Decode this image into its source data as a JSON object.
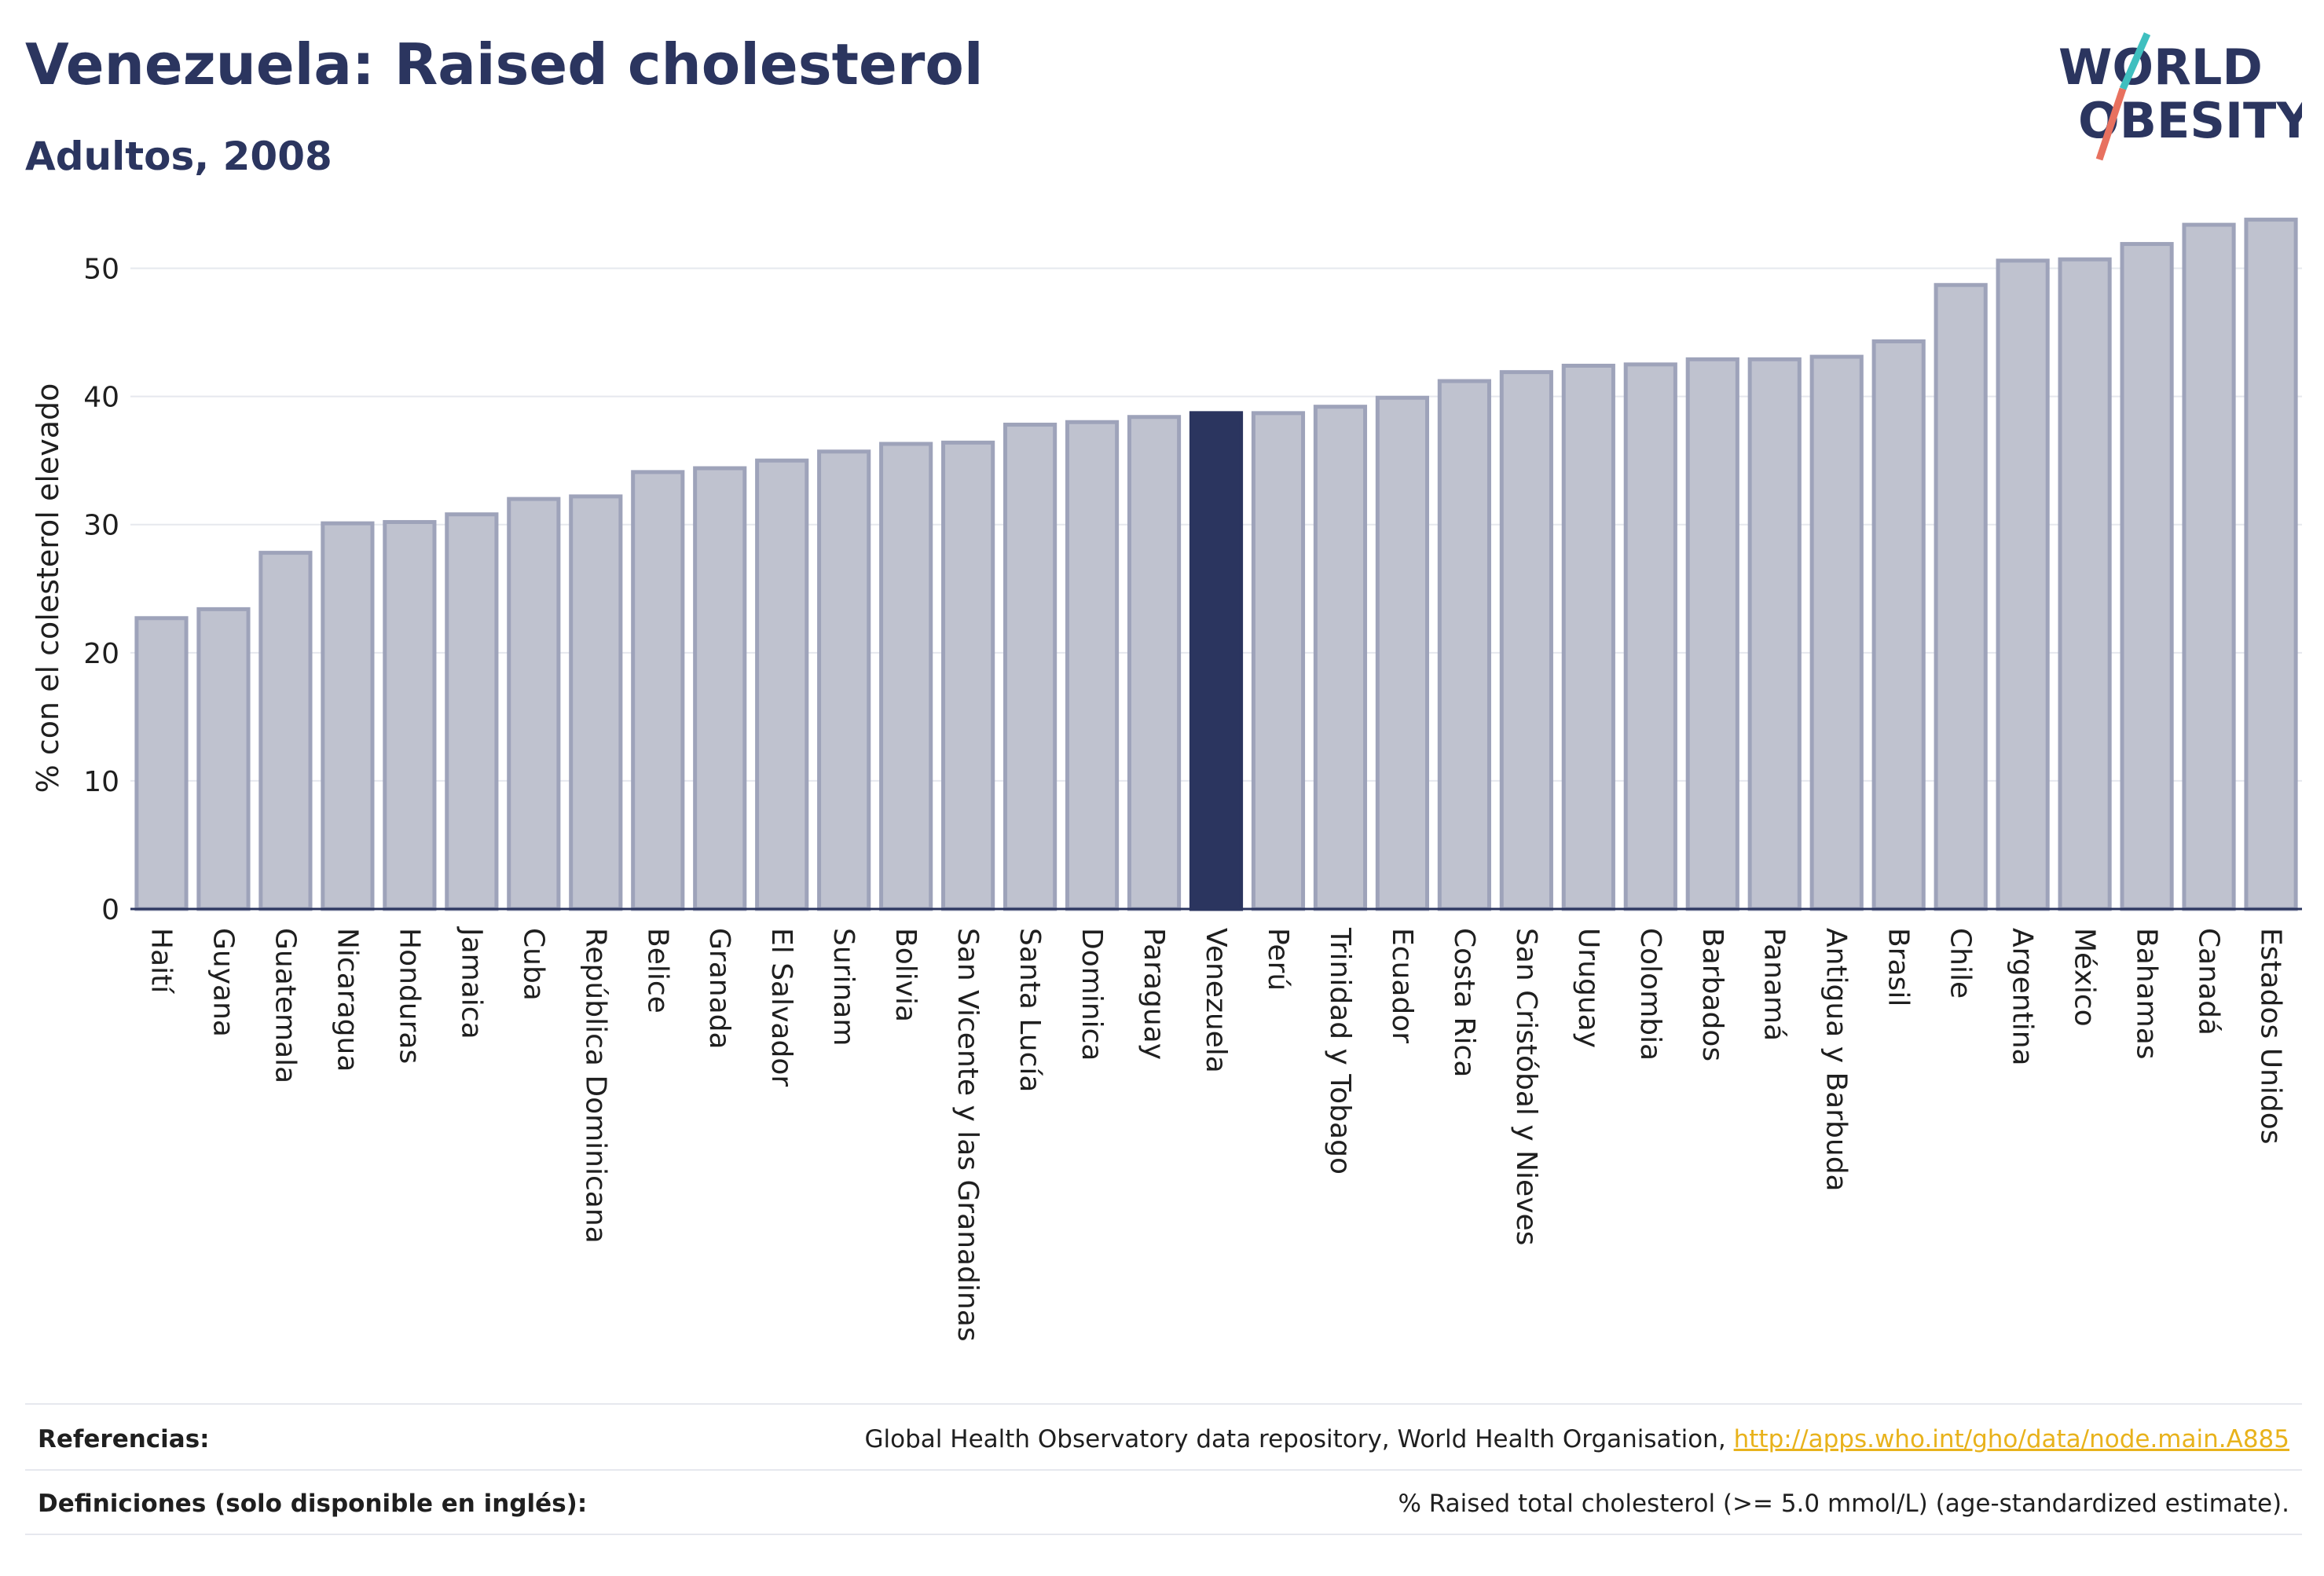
{
  "header": {
    "title": "Venezuela: Raised cholesterol",
    "subtitle": "Adultos, 2008"
  },
  "logo": {
    "line1": "WORLD",
    "line2": "OBESITY",
    "slash_colors": [
      "#3fbfbf",
      "#e8715f"
    ]
  },
  "colors": {
    "bar_fill": "#bfc2cf",
    "bar_stroke": "#9ea3ba",
    "highlight": "#2b355f",
    "grid": "#e6e8ee",
    "axis": "#2b355f"
  },
  "chart_data": {
    "type": "bar",
    "ylabel": "% con el colesterol elevado",
    "ylim": [
      0,
      55
    ],
    "yticks": [
      0,
      10,
      20,
      30,
      40,
      50
    ],
    "grid": true,
    "highlight": "Venezuela",
    "categories": [
      "Haití",
      "Guyana",
      "Guatemala",
      "Nicaragua",
      "Honduras",
      "Jamaica",
      "Cuba",
      "República Dominicana",
      "Belice",
      "Granada",
      "El Salvador",
      "Surinam",
      "Bolivia",
      "San Vicente y las Granadinas",
      "Santa Lucía",
      "Dominica",
      "Paraguay",
      "Venezuela",
      "Perú",
      "Trinidad y Tobago",
      "Ecuador",
      "Costa Rica",
      "San Cristóbal y Nieves",
      "Uruguay",
      "Colombia",
      "Barbados",
      "Panamá",
      "Antigua y Barbuda",
      "Brasil",
      "Chile",
      "Argentina",
      "México",
      "Bahamas",
      "Canadá",
      "Estados Unidos"
    ],
    "values": [
      22.7,
      23.4,
      27.8,
      30.1,
      30.2,
      30.8,
      32.0,
      32.2,
      34.1,
      34.4,
      35.0,
      35.7,
      36.3,
      36.4,
      37.8,
      38.0,
      38.4,
      38.7,
      38.7,
      39.2,
      39.9,
      41.2,
      41.9,
      42.4,
      42.5,
      42.9,
      42.9,
      43.1,
      44.3,
      48.7,
      50.6,
      50.7,
      51.9,
      53.4,
      53.8
    ]
  },
  "footer": {
    "references_label": "Referencias:",
    "references_text": "Global Health Observatory data repository, World Health Organisation,",
    "references_link": "http://apps.who.int/gho/data/node.main.A885",
    "definitions_label": "Definiciones (solo disponible en inglés):",
    "definitions_text": "% Raised total cholesterol (>= 5.0 mmol/L) (age-standardized estimate)."
  }
}
